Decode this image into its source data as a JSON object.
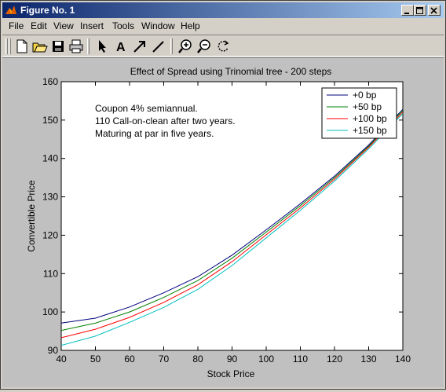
{
  "window": {
    "title": "Figure No. 1"
  },
  "menu": {
    "items": [
      "File",
      "Edit",
      "View",
      "Insert",
      "Tools",
      "Window",
      "Help"
    ]
  },
  "toolbar": {
    "tools": [
      "new-file-icon",
      "open-folder-icon",
      "save-icon",
      "print-icon",
      "arrow-pointer-icon",
      "text-a-icon",
      "arrow-icon",
      "line-icon",
      "zoom-in-icon",
      "zoom-out-icon",
      "rotate-icon"
    ]
  },
  "chart_data": {
    "type": "line",
    "title": "Effect of Spread using Trinomial tree - 200 steps",
    "xlabel": "Stock Price",
    "ylabel": "Convertible Price",
    "xlim": [
      40,
      140
    ],
    "ylim": [
      90,
      160
    ],
    "xticks": [
      40,
      50,
      60,
      70,
      80,
      90,
      100,
      110,
      120,
      130,
      140
    ],
    "yticks": [
      90,
      100,
      110,
      120,
      130,
      140,
      150,
      160
    ],
    "grid": false,
    "legend_position": "top-right",
    "annotation": [
      "Coupon 4% semiannual.",
      "110 Call-on-clean after two years.",
      "Maturing at par in five years."
    ],
    "series": [
      {
        "name": "+0 bp",
        "color": "#00007f",
        "x": [
          40,
          50,
          60,
          70,
          80,
          90,
          100,
          110,
          120,
          130,
          140
        ],
        "y": [
          97.1,
          98.4,
          101.3,
          105.0,
          109.2,
          114.8,
          121.4,
          128.2,
          135.4,
          143.5,
          152.8
        ]
      },
      {
        "name": "+50 bp",
        "color": "#007f00",
        "x": [
          40,
          50,
          60,
          70,
          80,
          90,
          100,
          110,
          120,
          130,
          140
        ],
        "y": [
          95.2,
          97.1,
          100.0,
          103.8,
          108.2,
          114.0,
          120.8,
          127.7,
          135.0,
          143.2,
          152.5
        ]
      },
      {
        "name": "+100 bp",
        "color": "#ff0000",
        "x": [
          40,
          50,
          60,
          70,
          80,
          90,
          100,
          110,
          120,
          130,
          140
        ],
        "y": [
          93.3,
          95.5,
          98.6,
          102.5,
          107.1,
          113.1,
          120.1,
          127.1,
          134.6,
          142.9,
          152.1
        ]
      },
      {
        "name": "+150 bp",
        "color": "#00bfbf",
        "x": [
          40,
          50,
          60,
          70,
          80,
          90,
          100,
          110,
          120,
          130,
          140
        ],
        "y": [
          91.3,
          93.7,
          97.3,
          101.2,
          105.9,
          112.1,
          119.3,
          126.5,
          134.1,
          142.5,
          151.7
        ]
      }
    ]
  }
}
